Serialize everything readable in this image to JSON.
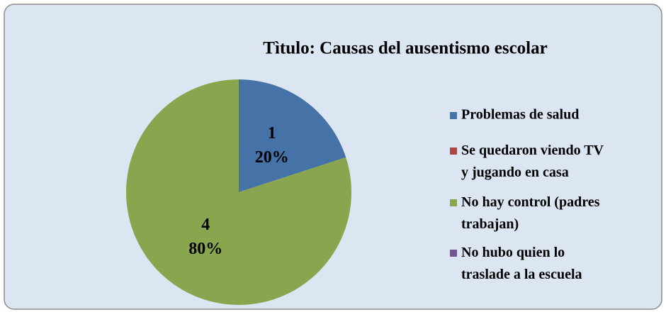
{
  "chart_data": {
    "type": "pie",
    "title": "Tìtulo: Causas del ausentismo escolar",
    "categories": [
      "Problemas de salud",
      "Se quedaron viendo TV y jugando en casa",
      "No hay control (padres trabajan)",
      "No hubo quien lo traslade a la escuela"
    ],
    "values": [
      1,
      0,
      4,
      0
    ],
    "percentages": [
      20,
      0,
      80,
      0
    ],
    "percentage_labels": [
      "20%",
      null,
      "80%",
      null
    ],
    "colors": [
      "#4572a7",
      "#aa4643",
      "#89a54e",
      "#71588f"
    ],
    "legend": "right"
  }
}
